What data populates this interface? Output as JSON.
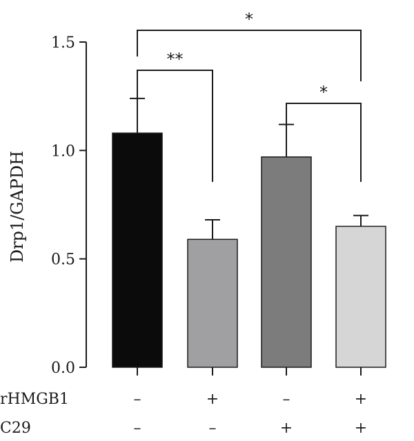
{
  "chart_data": {
    "type": "bar",
    "ylabel": "Drp1/GAPDH",
    "ylim": [
      0,
      1.5
    ],
    "yticks": [
      0.0,
      0.5,
      1.0,
      1.5
    ],
    "ytick_labels": [
      "0.0",
      "0.5",
      "1.0",
      "1.5"
    ],
    "grid": false,
    "bars": [
      {
        "value": 1.08,
        "error": 0.16,
        "color": "#0b0b0b",
        "rHMGB1": "–",
        "C29": "–"
      },
      {
        "value": 0.59,
        "error": 0.09,
        "color": "#a0a0a3",
        "rHMGB1": "+",
        "C29": "–"
      },
      {
        "value": 0.97,
        "error": 0.15,
        "color": "#7b7c7b",
        "rHMGB1": "–",
        "C29": "+"
      },
      {
        "value": 0.65,
        "error": 0.05,
        "color": "#d6d6d6",
        "rHMGB1": "+",
        "C29": "+"
      }
    ],
    "condition_rows": [
      {
        "label": "rHMGB1",
        "key": "rHMGB1"
      },
      {
        "label": "C29",
        "key": "C29"
      }
    ],
    "significance": [
      {
        "from": 0,
        "to": 1,
        "label": "**"
      },
      {
        "from": 0,
        "to": 3,
        "label": "*"
      },
      {
        "from": 2,
        "to": 3,
        "label": "*"
      }
    ]
  }
}
